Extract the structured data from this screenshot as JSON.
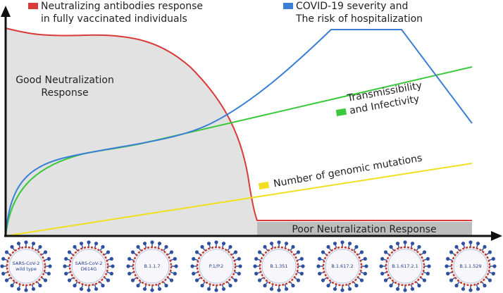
{
  "legend": [
    {
      "lines": [
        "Neutralizing antibodies response",
        "in fully vaccinated individuals"
      ]
    },
    {
      "lines": [
        "COVID-19 severity and",
        "The risk of hospitalization"
      ]
    }
  ],
  "regions": {
    "good": [
      "Good Neutralization",
      "Response"
    ],
    "poor": "Poor Neutralization Response"
  },
  "line_labels": {
    "transmissibility": [
      "Transmissibility",
      "and Infectivity"
    ],
    "mutations": "Number of genomic mutations"
  },
  "variants": [
    [
      "SARS-CoV-2",
      "wild type"
    ],
    [
      "SARS-CoV-2",
      "D614G"
    ],
    [
      "B.1.1.7"
    ],
    [
      "P.1/P.2"
    ],
    [
      "B.1.351"
    ],
    [
      "B.1.617.2"
    ],
    [
      "B.1.617.2.1"
    ],
    [
      "B.1.1.529"
    ]
  ]
}
